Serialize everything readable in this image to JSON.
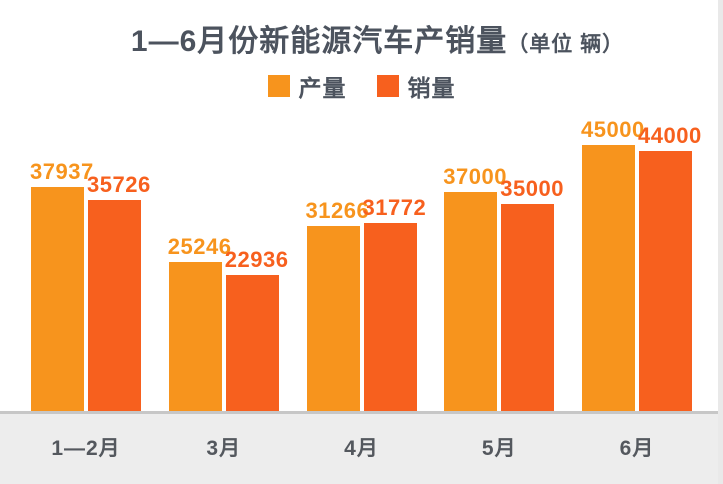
{
  "title": {
    "text": "1—6月份新能源汽车产销量",
    "unit": "（单位 辆）"
  },
  "colors": {
    "production": "#F7941D",
    "sales": "#F7601E",
    "title_text": "#4C535E",
    "axis_text": "#54585E",
    "axis_line": "#C7C7C7",
    "band_bg": "#EDEDED",
    "background": "#FFFFFF"
  },
  "chart_data": {
    "type": "bar",
    "title": "1—6月份新能源汽车产销量（单位 辆）",
    "categories": [
      "1—2月",
      "3月",
      "4月",
      "5月",
      "6月"
    ],
    "series": [
      {
        "name": "产量",
        "color": "#F7941D",
        "values": [
          37937,
          25246,
          31266,
          37000,
          45000
        ]
      },
      {
        "name": "销量",
        "color": "#F7601E",
        "values": [
          35726,
          22936,
          31772,
          35000,
          44000
        ]
      }
    ],
    "ylim": [
      0,
      45000
    ],
    "grid": false,
    "legend_position": "top-center",
    "value_labels": "above each bar, colored per series",
    "xlabel": "",
    "ylabel": ""
  }
}
